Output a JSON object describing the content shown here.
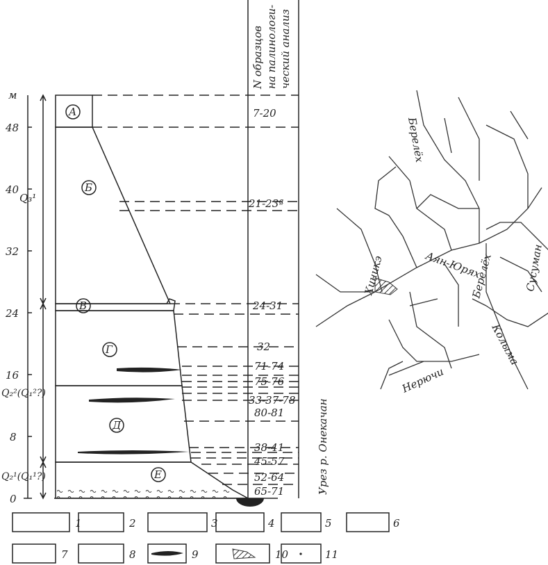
{
  "scale": {
    "unit": "м",
    "ticks": [
      "48",
      "40",
      "32",
      "24",
      "16",
      "8",
      "0"
    ]
  },
  "stratigraphy": [
    "Q₃¹",
    "Q₂²(Q₁²?)",
    "Q₂¹(Q₁¹?)"
  ],
  "layers": [
    "А",
    "Б",
    "В",
    "Г",
    "Д",
    "Е"
  ],
  "samples": {
    "header": [
      "N образцов",
      "на палинологи-",
      "ческий анализ"
    ],
    "rows": [
      "7-20",
      "21-23ª",
      "24-31",
      "32",
      "71-74",
      "75-76",
      "33-37-78",
      "80-81",
      "38-41",
      "45-57",
      "52-64",
      "65-71"
    ]
  },
  "water_level": "Урез р. Онекачан",
  "legend": [
    "1",
    "2",
    "3",
    "4",
    "5",
    "6",
    "7",
    "8",
    "9",
    "10",
    "11"
  ],
  "map": {
    "rivers": [
      "Берелёх",
      "Хиникэ",
      "Аян-Юрях",
      "Берелёх",
      "Сусуман",
      "Колыма",
      "Нерючи"
    ]
  }
}
